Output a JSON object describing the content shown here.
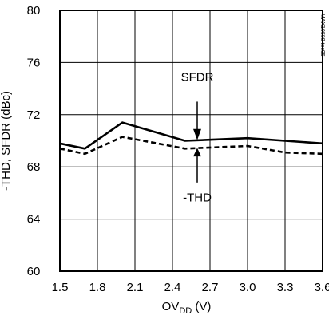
{
  "chart_data": {
    "type": "line",
    "title": "",
    "xlabel": "OV",
    "xlabel_sub": "DD",
    "xlabel_unit": " (V)",
    "ylabel": "-THD, SFDR (dBc)",
    "xlim": [
      1.5,
      3.6
    ],
    "ylim": [
      60,
      80
    ],
    "x_ticks": [
      1.5,
      1.8,
      2.1,
      2.4,
      2.7,
      3.0,
      3.3,
      3.6
    ],
    "x_tick_labels": [
      "1.5",
      "1.8",
      "2.1",
      "2.4",
      "2.7",
      "3.0",
      "3.3",
      "3.6"
    ],
    "y_ticks": [
      60,
      64,
      68,
      72,
      76,
      80
    ],
    "y_tick_labels": [
      "60",
      "64",
      "68",
      "72",
      "76",
      "80"
    ],
    "grid": true,
    "series": [
      {
        "name": "SFDR",
        "style": "solid",
        "color": "#000000",
        "x": [
          1.5,
          1.7,
          2.0,
          2.5,
          3.0,
          3.6
        ],
        "y": [
          69.8,
          69.4,
          71.4,
          70.0,
          70.2,
          69.8
        ]
      },
      {
        "name": "-THD",
        "style": "dashed",
        "color": "#000000",
        "x": [
          1.5,
          1.7,
          2.0,
          2.5,
          3.0,
          3.3,
          3.6
        ],
        "y": [
          69.4,
          69.0,
          70.3,
          69.4,
          69.6,
          69.1,
          69.0
        ]
      }
    ],
    "annotations": [
      {
        "text": "SFDR",
        "arrow": "down"
      },
      {
        "text": "-THD",
        "arrow": "up"
      }
    ],
    "watermark": "MAX19588 toc05"
  }
}
